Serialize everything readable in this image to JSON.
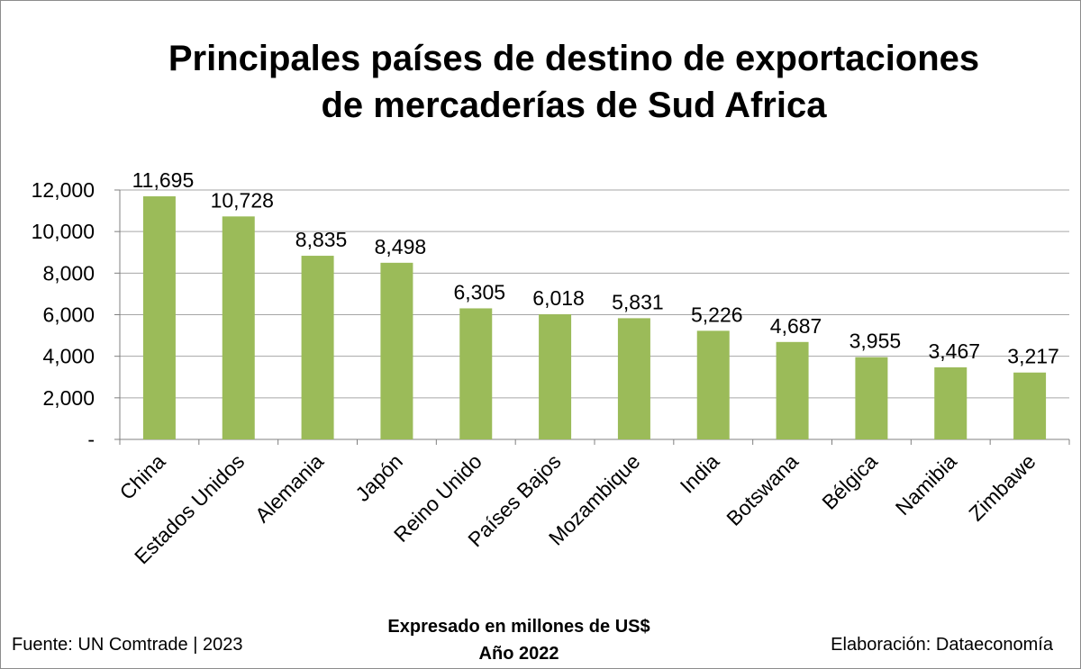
{
  "chart_data": {
    "type": "bar",
    "title_lines": [
      "Principales países de destino de exportaciones",
      "de mercaderías de Sud Africa"
    ],
    "categories": [
      "China",
      "Estados Unidos",
      "Alemania",
      "Japón",
      "Reino Unido",
      "Países Bajos",
      "Mozambique",
      "India",
      "Botswana",
      "Bélgica",
      "Namibia",
      "Zimbawe"
    ],
    "values": [
      11695,
      10728,
      8835,
      8498,
      6305,
      6018,
      5831,
      5226,
      4687,
      3955,
      3467,
      3217
    ],
    "value_labels": [
      "11,695",
      "10,728",
      "8,835",
      "8,498",
      "6,305",
      "6,018",
      "5,831",
      "5,226",
      "4,687",
      "3,955",
      "3,467",
      "3,217"
    ],
    "y_ticks": [
      0,
      2000,
      4000,
      6000,
      8000,
      10000,
      12000
    ],
    "y_tick_labels": [
      "-",
      "2,000",
      "4,000",
      "6,000",
      "8,000",
      "10,000",
      "12,000"
    ],
    "ylim": [
      0,
      12000
    ],
    "grid": true,
    "bar_color": "#9bbb59",
    "subtitle_lines": [
      "Expresado en millones de US$",
      "Año 2022"
    ],
    "source": "Fuente: UN Comtrade | 2023",
    "credit": "Elaboración: Dataeconomía"
  }
}
